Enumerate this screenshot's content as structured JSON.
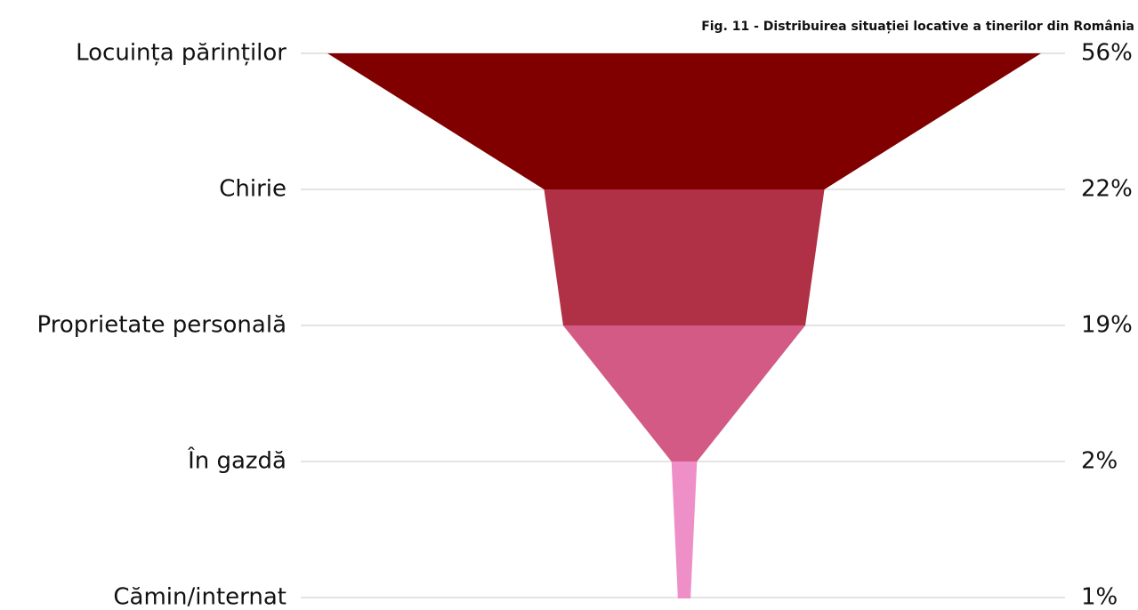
{
  "chart_data": {
    "type": "funnel",
    "title": "Fig. 11  - Distribuirea situației locative a tinerilor din România",
    "categories": [
      "Locuința părinților",
      "Chirie",
      "Proprietate personală",
      "În gazdă",
      "Cămin/internat"
    ],
    "values": [
      56,
      22,
      19,
      2,
      1
    ],
    "value_labels": [
      "56%",
      "22%",
      "19%",
      "2%",
      "1%"
    ],
    "colors": [
      "#800000",
      "#b03045",
      "#d25a84",
      "#ee8fc8",
      "#ee8fc8"
    ],
    "grid": true
  }
}
